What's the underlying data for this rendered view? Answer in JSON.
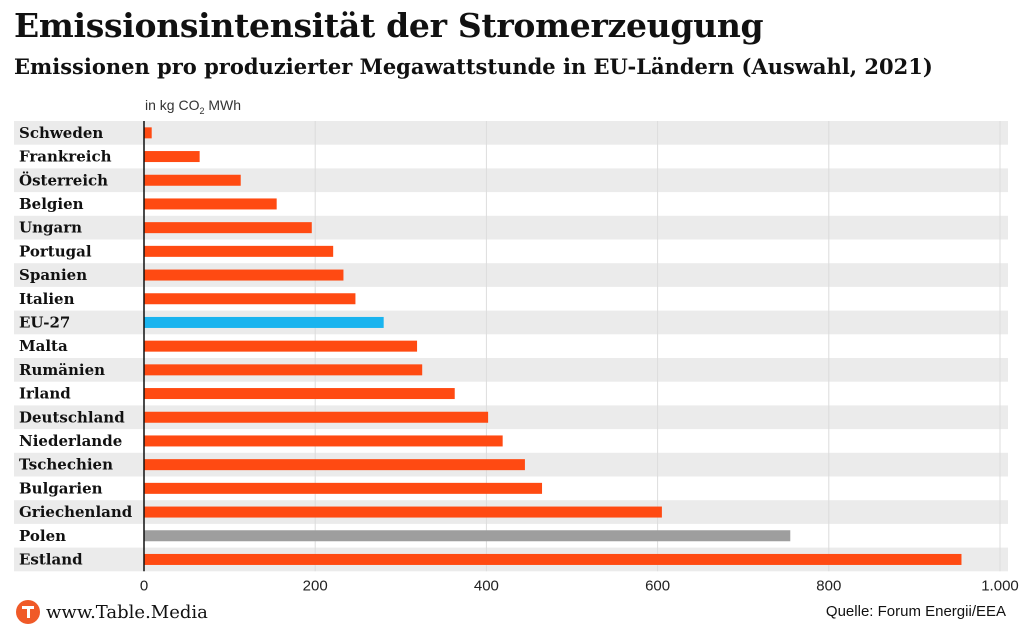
{
  "chart_data": {
    "type": "bar",
    "orientation": "horizontal",
    "title": "Emissionsintensität der Stromerzeugung",
    "subtitle": "Emissionen pro produzierter Megawattstunde in EU-Ländern (Auswahl, 2021)",
    "unit_prefix": "in kg CO",
    "unit_sub": "2",
    "unit_suffix": " MWh",
    "categories": [
      "Schweden",
      "Frankreich",
      "Österreich",
      "Belgien",
      "Ungarn",
      "Portugal",
      "Spanien",
      "Italien",
      "EU-27",
      "Malta",
      "Rumänien",
      "Irland",
      "Deutschland",
      "Niederlande",
      "Tschechien",
      "Bulgarien",
      "Griechenland",
      "Polen",
      "Estland"
    ],
    "values": [
      9,
      65,
      113,
      155,
      196,
      221,
      233,
      247,
      280,
      319,
      325,
      363,
      402,
      419,
      445,
      465,
      605,
      755,
      955
    ],
    "bar_colors": [
      "#ff4a12",
      "#ff4a12",
      "#ff4a12",
      "#ff4a12",
      "#ff4a12",
      "#ff4a12",
      "#ff4a12",
      "#ff4a12",
      "#1ab4ef",
      "#ff4a12",
      "#ff4a12",
      "#ff4a12",
      "#ff4a12",
      "#ff4a12",
      "#ff4a12",
      "#ff4a12",
      "#ff4a12",
      "#9e9e9e",
      "#ff4a12"
    ],
    "xlim": [
      0,
      1000
    ],
    "xticks": [
      0,
      200,
      400,
      600,
      800,
      1000
    ],
    "xtick_labels": [
      "0",
      "200",
      "400",
      "600",
      "800",
      "1.000"
    ],
    "grid": true
  },
  "footer": {
    "brand": "www.Table.Media",
    "source": "Quelle: Forum Energii/EEA"
  },
  "colors": {
    "accent": "#ff4a12",
    "highlight": "#1ab4ef",
    "muted": "#9e9e9e",
    "band": "#ebebeb"
  }
}
